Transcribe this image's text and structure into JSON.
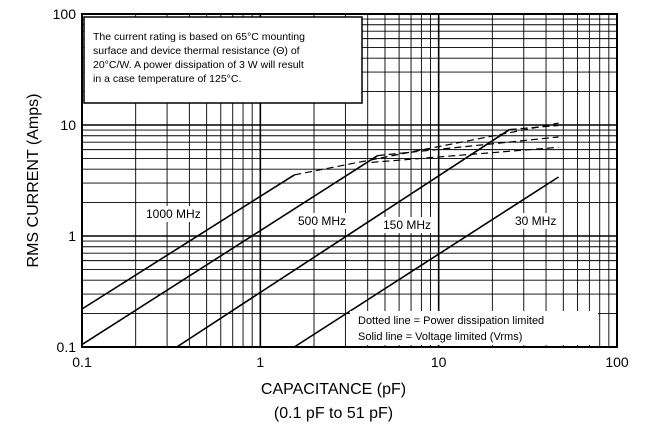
{
  "chart_data": {
    "type": "line",
    "xscale": "log",
    "yscale": "log",
    "xlim": [
      0.1,
      100
    ],
    "ylim": [
      0.1,
      100
    ],
    "xlabel": "CAPACITANCE (pF)",
    "xlabel_sub": "(0.1 pF to 51 pF)",
    "ylabel": "RMS CURRENT (Amps)",
    "x_ticks": [
      {
        "value": 0.1,
        "label": "0.1"
      },
      {
        "value": 1,
        "label": "1"
      },
      {
        "value": 10,
        "label": "10"
      },
      {
        "value": 100,
        "label": "100"
      }
    ],
    "y_ticks": [
      {
        "value": 0.1,
        "label": "0.1"
      },
      {
        "value": 1,
        "label": "1"
      },
      {
        "value": 10,
        "label": "10"
      },
      {
        "value": 100,
        "label": "100"
      }
    ],
    "grid": true,
    "note": [
      "The current rating is based on 65°C mounting",
      "surface and device thermal resistance (Θ) of",
      "20°C/W. A power dissipation of 3 W will result",
      "in a case temperature of 125°C."
    ],
    "legend": [
      "Dotted line =  Power dissipation limited",
      "Solid line = Voltage limited (Vrms)"
    ],
    "series": [
      {
        "name": "1000 MHz",
        "solid": [
          [
            0.1,
            0.22
          ],
          [
            1.55,
            3.55
          ]
        ],
        "dashed": [
          [
            1.55,
            3.55
          ],
          [
            47,
            10.4
          ]
        ]
      },
      {
        "name": "500 MHz",
        "solid": [
          [
            0.1,
            0.105
          ],
          [
            4.55,
            5.3
          ]
        ],
        "dashed": [
          [
            4.55,
            5.3
          ],
          [
            47,
            7.8
          ]
        ]
      },
      {
        "name": "150 MHz",
        "solid": [
          [
            0.34,
            0.1
          ],
          [
            25,
            9.1
          ]
        ],
        "dashed": [
          [
            25,
            9.1
          ],
          [
            47,
            9.9
          ]
        ],
        "dashed_extra": [
          [
            4.2,
            4.6
          ],
          [
            47,
            6.3
          ]
        ]
      },
      {
        "name": "30 MHz",
        "solid": [
          [
            1.55,
            0.1
          ],
          [
            47,
            3.4
          ]
        ]
      }
    ]
  }
}
